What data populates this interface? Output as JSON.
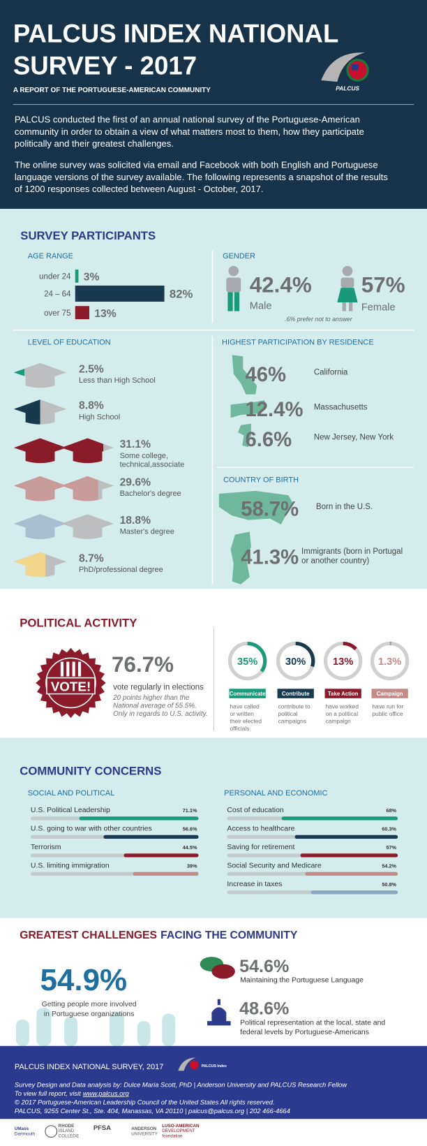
{
  "header": {
    "title_lines": [
      "PALCUS INDEX NATIONAL",
      "SURVEY - 2017"
    ],
    "subtitle": "A REPORT OF THE PORTUGUESE-AMERICAN COMMUNITY",
    "logo_text": "PALCUS",
    "intro": [
      [
        "PALCUS conducted the first of an annual national survey of the Portuguese-American",
        "community in order to obtain a view of what matters most to them,  how they participate",
        "politically and their greatest challenges."
      ],
      [
        "The online survey was solicited via email and Facebook with both English and Portuguese",
        "language versions of the survey available. The following represents a snapshot of the results",
        "of 1200 responses collected between August - October, 2017."
      ]
    ]
  },
  "participants": {
    "title": "SURVEY PARTICIPANTS",
    "age": {
      "heading": "AGE RANGE",
      "rows": [
        {
          "label": "under 24",
          "value": 3,
          "value_label": "3%"
        },
        {
          "label": "24 – 64",
          "value": 82,
          "value_label": "82%"
        },
        {
          "label": "over 75",
          "value": 13,
          "value_label": "13%"
        }
      ]
    },
    "gender": {
      "heading": "GENDER",
      "male": {
        "value_label": "42.4%",
        "label": "Male"
      },
      "female": {
        "value_label": "57%",
        "label": "Female"
      },
      "note": ".6% prefer not to answer"
    },
    "education": {
      "heading": "LEVEL OF EDUCATION",
      "rows": [
        {
          "value_label": "2.5%",
          "label_lines": [
            "Less than High School"
          ]
        },
        {
          "value_label": "8.8%",
          "label_lines": [
            "High School"
          ]
        },
        {
          "value_label": "31.1%",
          "label_lines": [
            "Some college,",
            "technical,associate"
          ]
        },
        {
          "value_label": "29.6%",
          "label_lines": [
            "Bachelor's degree"
          ]
        },
        {
          "value_label": "18.8%",
          "label_lines": [
            "Master's degree"
          ]
        },
        {
          "value_label": "8.7%",
          "label_lines": [
            "PhD/professional degree"
          ]
        }
      ]
    },
    "residence": {
      "heading": "HIGHEST PARTICIPATION BY RESIDENCE",
      "rows": [
        {
          "value_label": "46%",
          "label": "California"
        },
        {
          "value_label": "12.4%",
          "label": "Massachusetts"
        },
        {
          "value_label": "6.6%",
          "label": "New Jersey, New York"
        }
      ]
    },
    "birth": {
      "heading": "COUNTRY OF BIRTH",
      "rows": [
        {
          "value_label": "58.7%",
          "label_lines": [
            "Born in the U.S."
          ]
        },
        {
          "value_label": "41.3%",
          "label_lines": [
            "Immigrants (born in Portugal",
            "or another country)"
          ]
        }
      ]
    }
  },
  "political": {
    "title": "POLITICAL ACTIVITY",
    "badge": "VOTE!",
    "headline": "76.7%",
    "caption": "vote regularly in elections",
    "note_lines": [
      "20 points higher than the",
      "National average of 55.5%.",
      "Only in regards to U.S. activity."
    ],
    "items": [
      {
        "value": 35,
        "value_label": "35%",
        "tag": "Communicate",
        "desc_lines": [
          "have called",
          "or written",
          "their elected",
          "officials"
        ]
      },
      {
        "value": 30,
        "value_label": "30%",
        "tag": "Contribute",
        "desc_lines": [
          "contribute to",
          "political",
          "campaigns"
        ]
      },
      {
        "value": 13,
        "value_label": "13%",
        "tag": "Take Action",
        "desc_lines": [
          "have worked",
          "on a political",
          "campaign"
        ]
      },
      {
        "value": 1.3,
        "value_label": "1.3%",
        "tag": "Campaign",
        "desc_lines": [
          "have run for",
          "public office"
        ]
      }
    ]
  },
  "concerns": {
    "title": "COMMUNITY CONCERNS",
    "groups": [
      {
        "heading": "SOCIAL AND POLITICAL",
        "rows": [
          {
            "label": "U.S. Political Leadership",
            "value": 71.1,
            "value_label": "71.1%"
          },
          {
            "label": "U.S. going to war with other countries",
            "value": 56.6,
            "value_label": "56.6%"
          },
          {
            "label": "Terrorism",
            "value": 44.5,
            "value_label": "44.5%"
          },
          {
            "label": "U.S. limiting immigration",
            "value": 39,
            "value_label": "39%"
          }
        ]
      },
      {
        "heading": "PERSONAL AND ECONOMIC",
        "rows": [
          {
            "label": "Cost of education",
            "value": 68,
            "value_label": "68%"
          },
          {
            "label": "Access to healthcare",
            "value": 60.3,
            "value_label": "60.3%"
          },
          {
            "label": "Saving for retirement",
            "value": 57,
            "value_label": "57%"
          },
          {
            "label": "Social Security and Medicare",
            "value": 54.2,
            "value_label": "54.2%"
          },
          {
            "label": "Increase in taxes",
            "value": 50.8,
            "value_label": "50.8%"
          }
        ]
      }
    ]
  },
  "challenges": {
    "title_parts": [
      "GREATEST CHALLENGES",
      "FACING THE COMMUNITY"
    ],
    "main": {
      "value_label": "54.9%",
      "lines": [
        "Getting people more involved",
        "in Portuguese organizations"
      ]
    },
    "items": [
      {
        "value_label": "54.6%",
        "lines": [
          "Maintaining the Portuguese Language"
        ]
      },
      {
        "value_label": "48.6%",
        "lines": [
          "Political representation at the local, state and",
          "federal levels by Portuguese-Americans"
        ]
      }
    ]
  },
  "footer": {
    "title": "PALCUS INDEX NATIONAL SURVEY, 2017",
    "logo_text": "PALCUS Index",
    "credits": "Survey Design and Data analysis by: Dulce Maria Scott, PhD | Anderson University and PALCUS Research Fellow",
    "report_prefix": "To view full report, visit",
    "report_link": "www.palcus.org",
    "copyright": "© 2017 Portuguese-American Leadership Council of the United States All rights reserved.",
    "address": "PALCUS, 9255 Center St., Ste. 404, Manassas, VA 20110 | palcus@palcus.org | 202 466-4664"
  },
  "partners": [
    [
      "UMass",
      "Dartmouth"
    ],
    [
      "RHODE",
      "ISLAND",
      "COLLEGE"
    ],
    [
      "PFSA"
    ],
    [
      "ANDERSON",
      "UNIVERSITY"
    ],
    [
      "LUSO-AMERICAN",
      "DEVELOPMENT",
      "foundation"
    ]
  ]
}
